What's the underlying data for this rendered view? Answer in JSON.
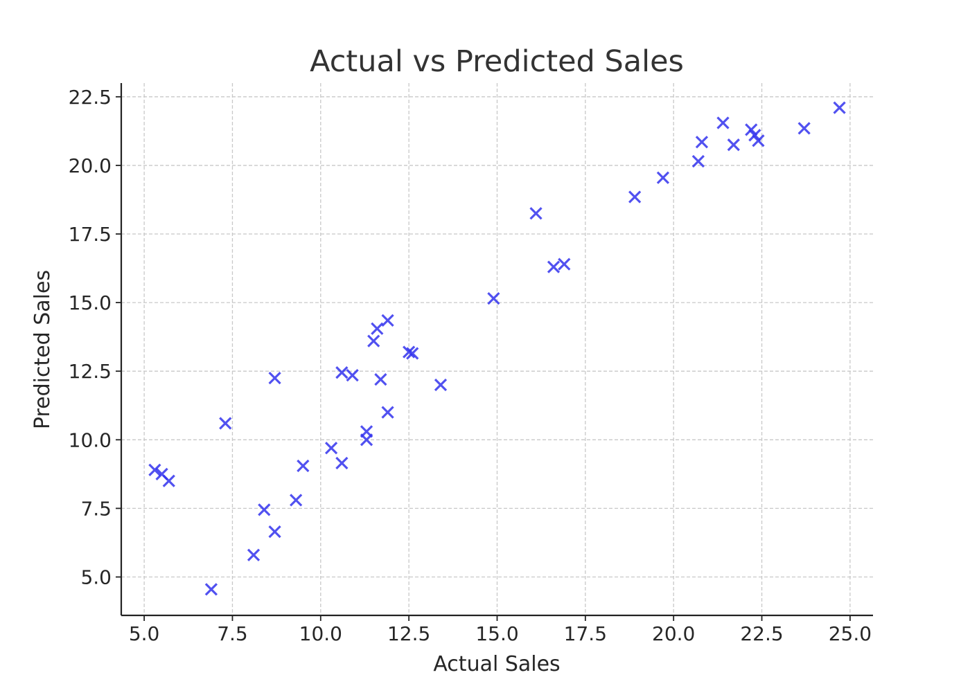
{
  "chart_data": {
    "type": "scatter",
    "title": "Actual vs Predicted Sales",
    "xlabel": "Actual Sales",
    "ylabel": "Predicted Sales",
    "xlim": [
      4.35,
      25.65
    ],
    "ylim": [
      3.6,
      23.0
    ],
    "xticks": [
      5.0,
      7.5,
      10.0,
      12.5,
      15.0,
      17.5,
      20.0,
      22.5,
      25.0
    ],
    "yticks": [
      5.0,
      7.5,
      10.0,
      12.5,
      15.0,
      17.5,
      20.0,
      22.5
    ],
    "xtick_labels": [
      "5.0",
      "7.5",
      "10.0",
      "12.5",
      "15.0",
      "17.5",
      "20.0",
      "22.5",
      "25.0"
    ],
    "ytick_labels": [
      "5.0",
      "7.5",
      "10.0",
      "12.5",
      "15.0",
      "17.5",
      "20.0",
      "22.5"
    ],
    "grid": true,
    "marker": "x",
    "color": "#3333ee",
    "series": [
      {
        "points": [
          [
            5.3,
            8.9
          ],
          [
            5.5,
            8.75
          ],
          [
            5.7,
            8.5
          ],
          [
            6.9,
            4.55
          ],
          [
            7.3,
            10.6
          ],
          [
            8.1,
            5.8
          ],
          [
            8.4,
            7.45
          ],
          [
            8.7,
            6.65
          ],
          [
            8.7,
            12.25
          ],
          [
            9.3,
            7.8
          ],
          [
            9.5,
            9.05
          ],
          [
            10.3,
            9.7
          ],
          [
            10.6,
            9.15
          ],
          [
            10.6,
            12.45
          ],
          [
            10.9,
            12.35
          ],
          [
            11.3,
            10.0
          ],
          [
            11.3,
            10.3
          ],
          [
            11.5,
            13.6
          ],
          [
            11.6,
            14.05
          ],
          [
            11.7,
            12.2
          ],
          [
            11.9,
            11.0
          ],
          [
            11.9,
            14.35
          ],
          [
            12.5,
            13.2
          ],
          [
            12.6,
            13.15
          ],
          [
            13.4,
            12.0
          ],
          [
            14.9,
            15.15
          ],
          [
            16.1,
            18.25
          ],
          [
            16.6,
            16.3
          ],
          [
            16.9,
            16.4
          ],
          [
            18.9,
            18.85
          ],
          [
            19.7,
            19.55
          ],
          [
            20.7,
            20.15
          ],
          [
            20.8,
            20.85
          ],
          [
            21.4,
            21.55
          ],
          [
            21.7,
            20.75
          ],
          [
            22.2,
            21.3
          ],
          [
            22.3,
            21.1
          ],
          [
            22.4,
            20.9
          ],
          [
            23.7,
            21.35
          ],
          [
            24.7,
            22.1
          ]
        ]
      }
    ]
  }
}
